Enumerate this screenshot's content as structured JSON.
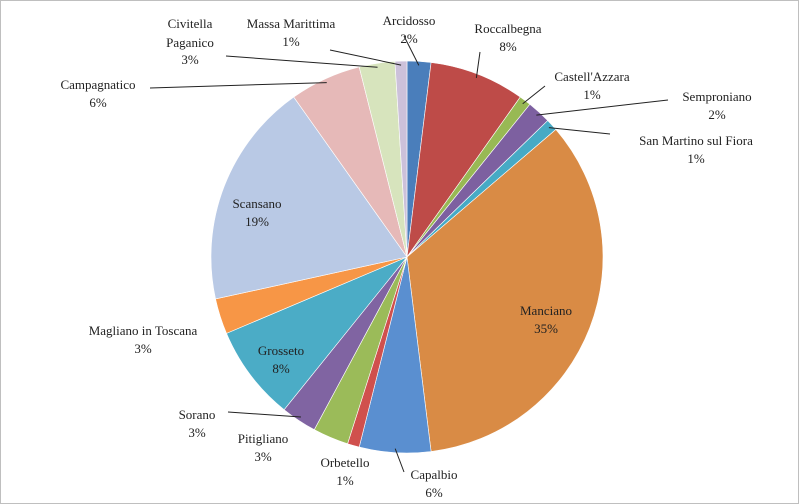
{
  "chart_data": {
    "type": "pie",
    "categories": [
      "Arcidosso",
      "Roccalbegna",
      "Castell'Azzara",
      "Semproniano",
      "San Martino sul Fiora",
      "Manciano",
      "Capalbio",
      "Orbetello",
      "Pitigliano",
      "Sorano",
      "Grosseto",
      "Magliano in Toscana",
      "Scansano",
      "Campagnatico",
      "Civitella Paganico",
      "Massa Marittima"
    ],
    "values": [
      2,
      8,
      1,
      2,
      1,
      35,
      6,
      1,
      3,
      3,
      8,
      3,
      19,
      6,
      3,
      1
    ],
    "value_labels": [
      "2%",
      "8%",
      "1%",
      "2%",
      "1%",
      "35%",
      "6%",
      "1%",
      "3%",
      "3%",
      "8%",
      "3%",
      "19%",
      "6%",
      "3%",
      "1%"
    ],
    "colors": [
      "#4a7ebb",
      "#be4b48",
      "#98b954",
      "#7d60a0",
      "#46aac5",
      "#d98b45",
      "#5a8fd0",
      "#d0504d",
      "#9bbb59",
      "#8064a2",
      "#4bacc6",
      "#f79646",
      "#b9c9e5",
      "#e6b9b8",
      "#d7e4bd",
      "#ccc1da"
    ]
  }
}
